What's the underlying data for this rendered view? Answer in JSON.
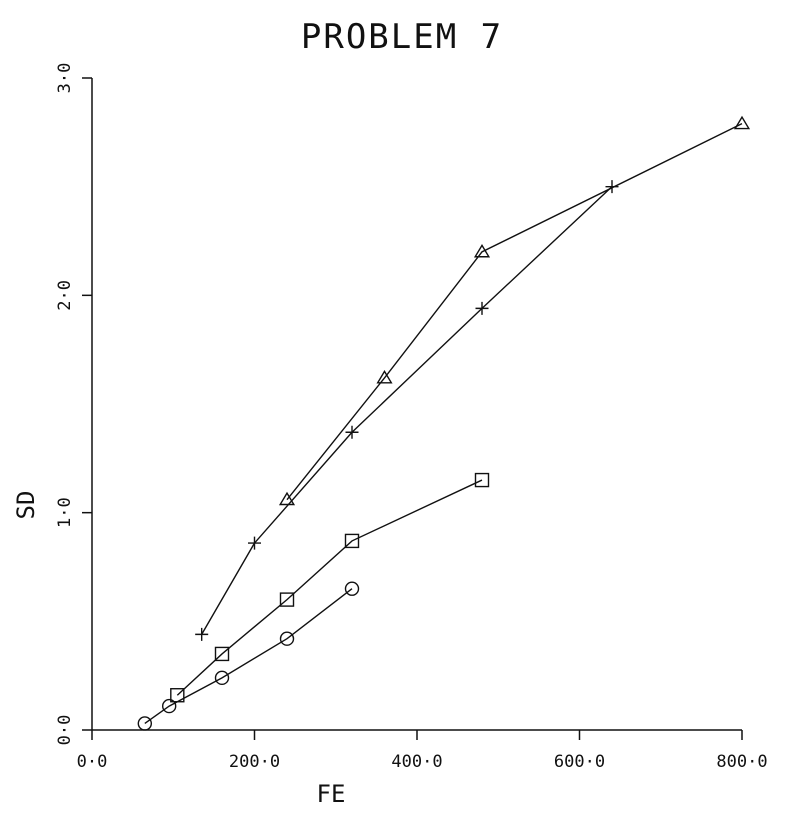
{
  "chart_data": {
    "type": "line",
    "title": "PROBLEM 7",
    "xlabel": "FE",
    "ylabel": "SD",
    "xlim": [
      0,
      800
    ],
    "ylim": [
      0,
      3
    ],
    "xticks": [
      0,
      200,
      400,
      600,
      800
    ],
    "xtick_labels": [
      "0·0",
      "200·0",
      "400·0",
      "600·0",
      "800·0"
    ],
    "yticks": [
      0,
      1,
      2,
      3
    ],
    "ytick_labels": [
      "0·0",
      "1·0",
      "2·0",
      "3·0"
    ],
    "grid": false,
    "series": [
      {
        "marker": "triangle",
        "x": [
          240,
          360,
          480,
          800
        ],
        "y": [
          1.06,
          1.62,
          2.2,
          2.79
        ]
      },
      {
        "marker": "plus",
        "x": [
          135,
          200,
          320,
          480,
          640
        ],
        "y": [
          0.44,
          0.86,
          1.37,
          1.94,
          2.5
        ]
      },
      {
        "marker": "square",
        "x": [
          105,
          160,
          240,
          320,
          480
        ],
        "y": [
          0.16,
          0.35,
          0.6,
          0.87,
          1.15
        ]
      },
      {
        "marker": "circle",
        "x": [
          65,
          95,
          160,
          240,
          320
        ],
        "y": [
          0.03,
          0.11,
          0.24,
          0.42,
          0.65
        ]
      }
    ]
  }
}
